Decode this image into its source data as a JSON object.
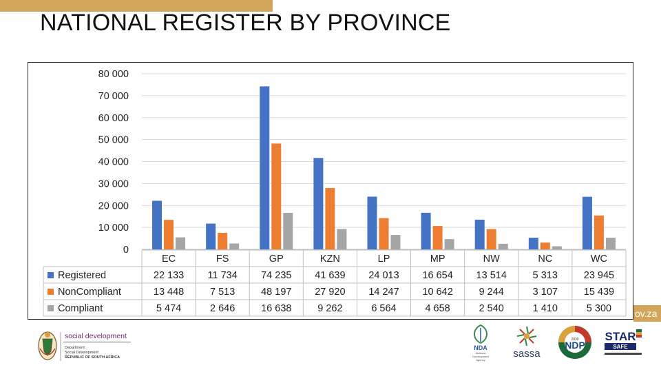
{
  "slide": {
    "title": "NATIONAL REGISTER BY PROVINCE",
    "url_fragment": "ov.za",
    "accent_color": "#d1a65a"
  },
  "footer": {
    "department_name": "social development",
    "department_sub1": "Department:",
    "department_sub2": "Social Development",
    "department_sub3": "REPUBLIC OF SOUTH AFRICA",
    "nda_label": "NDA",
    "nda_sub1": "National",
    "nda_sub2": "Development",
    "nda_sub3": "Agency",
    "sassa_label": "sassa",
    "ndp_label": "NDP",
    "ndp_year": "2030",
    "star_label": "STAR",
    "star_sub": "SAFE"
  },
  "chart_data": {
    "type": "bar",
    "categories": [
      "EC",
      "FS",
      "GP",
      "KZN",
      "LP",
      "MP",
      "NW",
      "NC",
      "WC"
    ],
    "series": [
      {
        "name": "Registered",
        "color": "#4472c4",
        "values": [
          22133,
          11734,
          74235,
          41639,
          24013,
          16654,
          13514,
          5313,
          23945
        ],
        "labels": [
          "22 133",
          "11 734",
          "74 235",
          "41 639",
          "24 013",
          "16 654",
          "13 514",
          "5 313",
          "23 945"
        ]
      },
      {
        "name": "NonCompliant",
        "color": "#ed7d31",
        "values": [
          13448,
          7513,
          48197,
          27920,
          14247,
          10642,
          9244,
          3107,
          15439
        ],
        "labels": [
          "13 448",
          "7 513",
          "48 197",
          "27 920",
          "14 247",
          "10 642",
          "9 244",
          "3 107",
          "15 439"
        ]
      },
      {
        "name": "Compliant",
        "color": "#a5a5a5",
        "values": [
          5474,
          2646,
          16638,
          9262,
          6564,
          4658,
          2540,
          1410,
          5300
        ],
        "labels": [
          "5 474",
          "2 646",
          "16 638",
          "9 262",
          "6 564",
          "4 658",
          "2 540",
          "1 410",
          "5 300"
        ]
      }
    ],
    "yticks": [
      "0",
      "10 000",
      "20 000",
      "30 000",
      "40 000",
      "50 000",
      "60 000",
      "70 000",
      "80 000"
    ],
    "ylim": [
      0,
      80000
    ],
    "grid": true,
    "legend": "data-table-left"
  }
}
